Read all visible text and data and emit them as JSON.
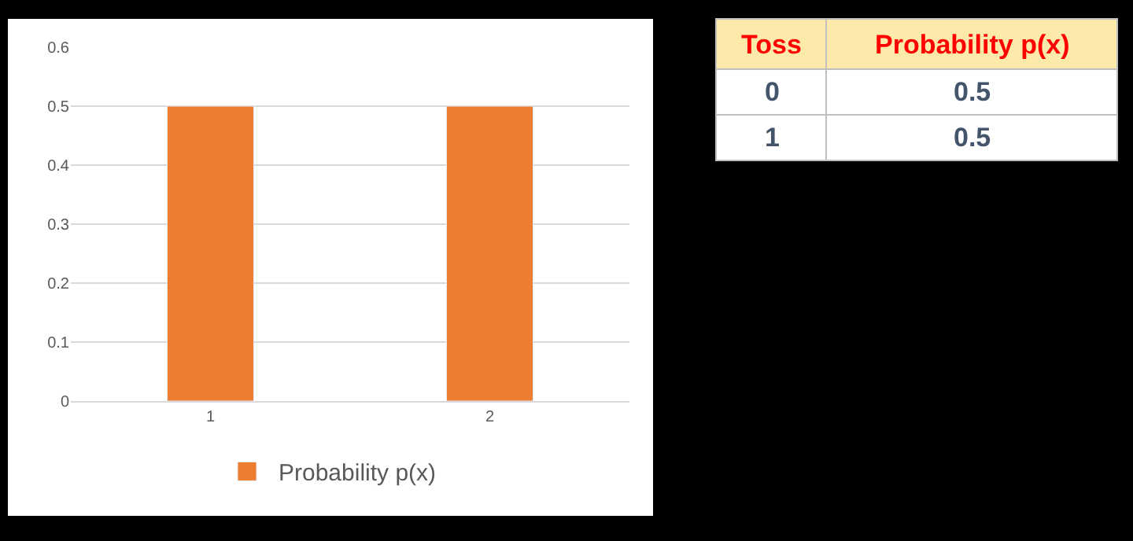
{
  "chart_data": [
    {
      "type": "bar",
      "categories": [
        "1",
        "2"
      ],
      "series": [
        {
          "name": "Probability p(x)",
          "color": "#ed7d31",
          "values": [
            0.5,
            0.5
          ]
        }
      ],
      "ylim": [
        0,
        0.6
      ],
      "yticks": [
        0,
        0.1,
        0.2,
        0.3,
        0.4,
        0.5,
        0.6
      ],
      "grid": "y",
      "legend": "bottom"
    },
    {
      "type": "other",
      "xlabel": "Toss",
      "ylabel": "Probability p(x)",
      "categories": [
        "0",
        "1"
      ],
      "values": [
        0.5,
        0.5
      ],
      "data_labels": true
    }
  ]
}
